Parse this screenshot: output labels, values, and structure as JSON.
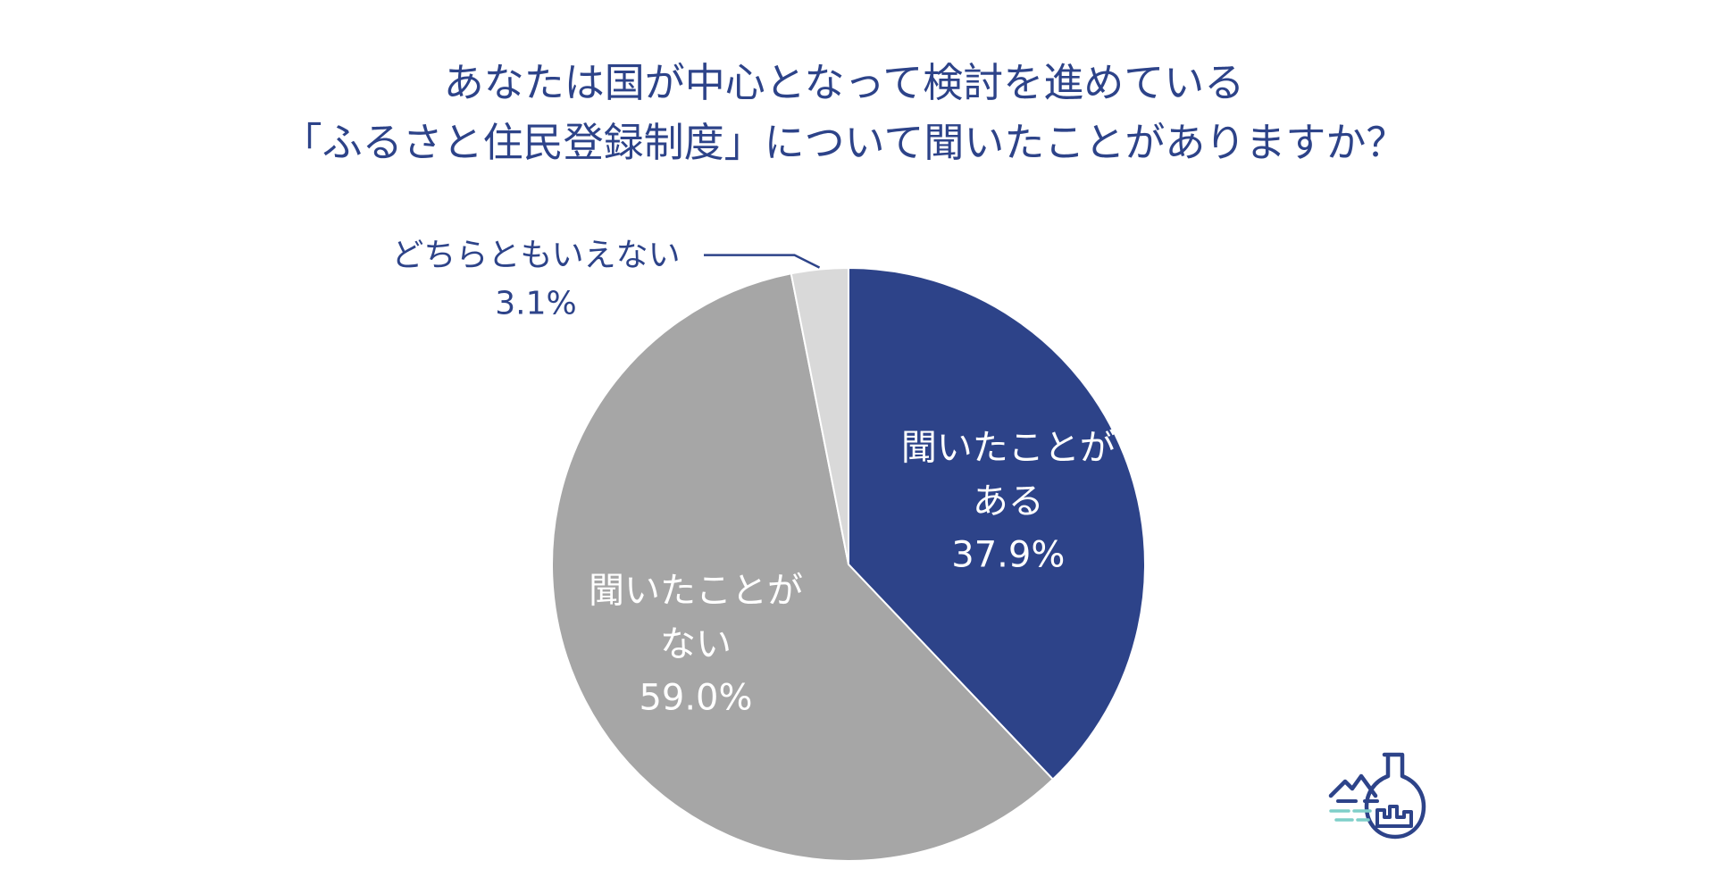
{
  "chart_data": {
    "type": "pie",
    "title": [
      "あなたは国が中心となって検討を進めている",
      "「ふるさと住民登録制度」について聞いたことがありますか？"
    ],
    "slices": [
      {
        "label": [
          "聞いたことが",
          "ある"
        ],
        "value": 37.9,
        "value_label": "37.9%",
        "color": "#2d4389"
      },
      {
        "label": [
          "聞いたことが",
          "ない"
        ],
        "value": 59.0,
        "value_label": "59.0%",
        "color": "#a6a6a6"
      },
      {
        "label": [
          "どちらともいえない"
        ],
        "value": 3.1,
        "value_label": "3.1%",
        "color": "#d9d9d9"
      }
    ],
    "start_angle_deg": 0,
    "direction": "clockwise"
  },
  "logo": {
    "icon": "flask-mountain-icon",
    "primary_color": "#2d4389",
    "accent_color": "#7fcfc9"
  }
}
